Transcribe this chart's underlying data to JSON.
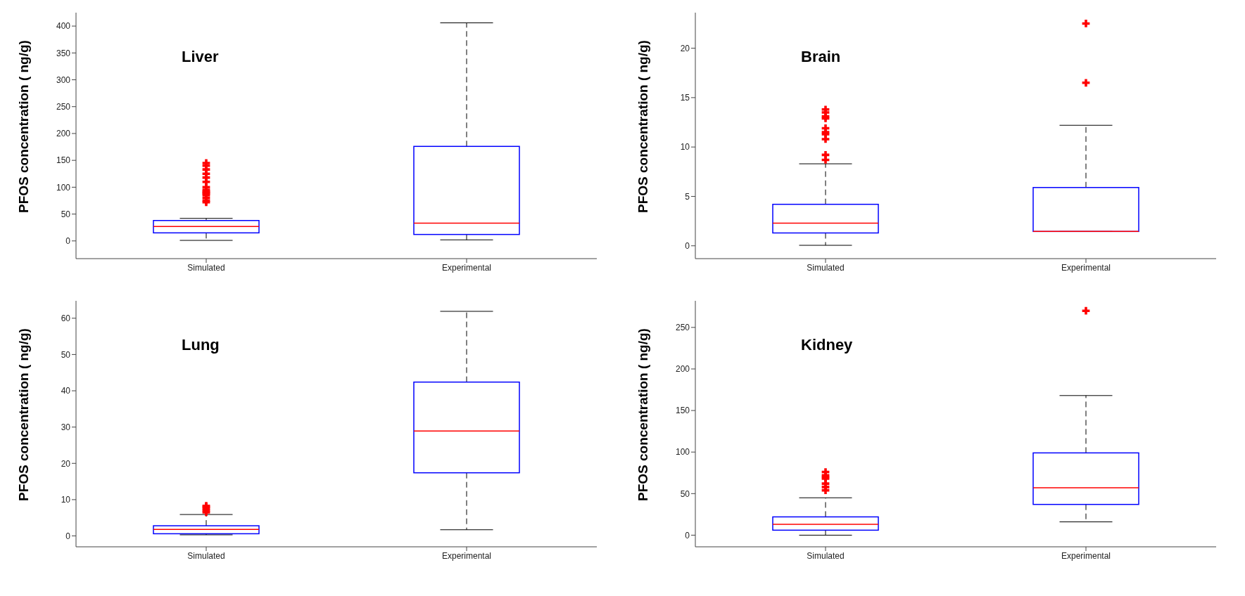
{
  "chart_data": [
    {
      "type": "box",
      "title": "Liver",
      "ylabel": "PFOS concentration ( ng/g)",
      "categories": [
        "Simulated",
        "Experimental"
      ],
      "color": "#0000ff",
      "ylim": [
        -33,
        425
      ],
      "yticks": [
        0,
        50,
        100,
        150,
        200,
        250,
        300,
        350,
        400
      ],
      "boxes": [
        {
          "low": 1,
          "q1": 15,
          "median": 27,
          "q3": 38,
          "high": 42,
          "outliers": [
            72,
            75,
            80,
            85,
            88,
            90,
            92,
            95,
            100,
            110,
            118,
            125,
            133,
            140,
            145
          ]
        },
        {
          "low": 2,
          "q1": 12,
          "median": 33,
          "q3": 176,
          "high": 406
        }
      ]
    },
    {
      "type": "box",
      "title": "Brain",
      "ylabel": "PFOS concentration ( ng/g)",
      "categories": [
        "Simulated",
        "Experimental"
      ],
      "color": "#0000ff",
      "ylim": [
        -1.3,
        23.6
      ],
      "yticks": [
        0,
        5,
        10,
        15,
        20
      ],
      "boxes": [
        {
          "low": 0.05,
          "q1": 1.3,
          "median": 2.3,
          "q3": 4.2,
          "high": 8.3,
          "outliers": [
            8.7,
            9.2,
            10.8,
            11.3,
            11.5,
            11.9,
            12.9,
            13.1,
            13.5,
            13.8
          ]
        },
        {
          "low": 1.45,
          "q1": 1.45,
          "median": 1.45,
          "q3": 5.9,
          "high": 12.2,
          "outliers": [
            16.5,
            22.5
          ]
        }
      ]
    },
    {
      "type": "box",
      "title": "Lung",
      "ylabel": "PFOS concentration ( ng/g)",
      "categories": [
        "Simulated",
        "Experimental"
      ],
      "color": "#0000ff",
      "ylim": [
        -3,
        64.8
      ],
      "yticks": [
        0,
        10,
        20,
        30,
        40,
        50,
        60
      ],
      "boxes": [
        {
          "low": 0.3,
          "q1": 0.6,
          "median": 1.8,
          "q3": 2.8,
          "high": 5.9,
          "outliers": [
            6.5,
            7,
            7.5,
            8,
            8.3
          ]
        },
        {
          "low": 1.7,
          "q1": 17.4,
          "median": 28.9,
          "q3": 42.4,
          "high": 61.9
        }
      ]
    },
    {
      "type": "box",
      "title": "Kidney",
      "ylabel": "PFOS concentration ( ng/g)",
      "categories": [
        "Simulated",
        "Experimental"
      ],
      "color": "#0000ff",
      "ylim": [
        -14,
        282
      ],
      "yticks": [
        0,
        50,
        100,
        150,
        200,
        250
      ],
      "boxes": [
        {
          "low": 0,
          "q1": 6,
          "median": 13,
          "q3": 22,
          "high": 45,
          "outliers": [
            54,
            58,
            62,
            68,
            70,
            72,
            76
          ]
        },
        {
          "low": 16,
          "q1": 37,
          "median": 57,
          "q3": 99,
          "high": 168,
          "outliers": [
            270
          ]
        }
      ]
    }
  ]
}
